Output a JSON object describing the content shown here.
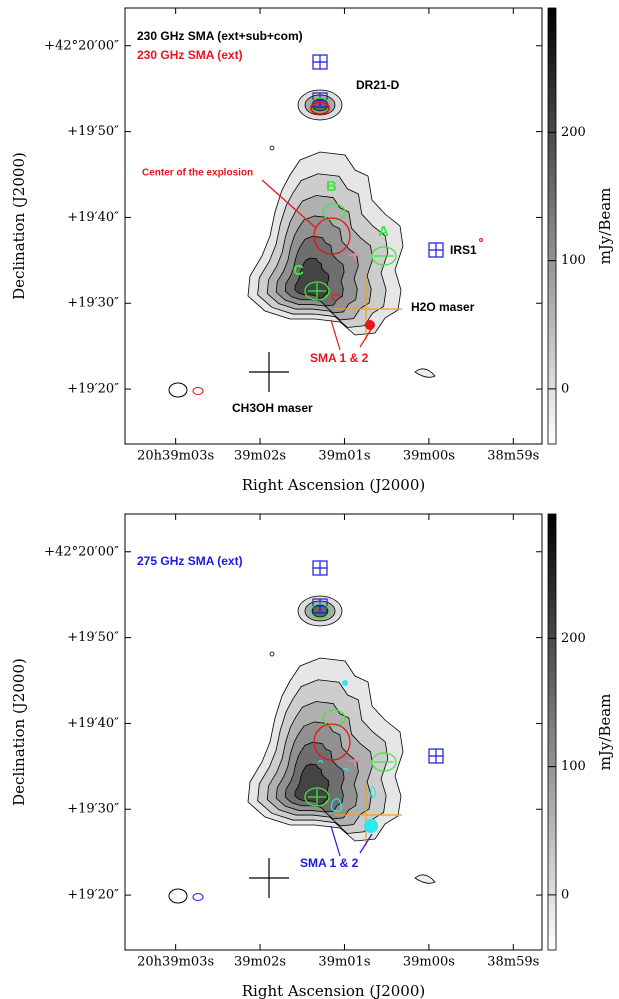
{
  "chart_data": [
    {
      "type": "contour",
      "xlabel": "Right Ascension (J2000)",
      "ylabel": "Declination (J2000)",
      "colorbar_label": "mJy/Beam",
      "xlim": [
        3.6,
        -1.34
      ],
      "xticks": [
        {
          "value": 3,
          "label": "20h39m03s"
        },
        {
          "value": 2,
          "label": "39m02s"
        },
        {
          "value": 1,
          "label": "39m01s"
        },
        {
          "value": 0,
          "label": "39m00s"
        },
        {
          "value": -1,
          "label": "38m59s"
        }
      ],
      "ylim": [
        13.6,
        64.4
      ],
      "yticks": [
        {
          "value": 60,
          "label": "+42°20′00″"
        },
        {
          "value": 50,
          "label": "+19′50″"
        },
        {
          "value": 40,
          "label": "+19′40″"
        },
        {
          "value": 30,
          "label": "+19′30″"
        },
        {
          "value": 20,
          "label": "+19′20″"
        }
      ],
      "clim": [
        -43,
        297
      ],
      "cticks": [
        0,
        100,
        200
      ],
      "annotations": [
        "230 GHz SMA (ext+sub+com)",
        "230 GHz SMA (ext)",
        "DR21-D",
        "Center of the explosion",
        "B",
        "A",
        "C",
        "IRS1",
        "H2O maser",
        "SMA 1 & 2",
        "CH3OH maser"
      ]
    },
    {
      "type": "contour",
      "xlabel": "Right Ascension (J2000)",
      "ylabel": "Declination (J2000)",
      "colorbar_label": "mJy/Beam",
      "xlim": [
        3.6,
        -1.34
      ],
      "xticks": [
        {
          "value": 3,
          "label": "20h39m03s"
        },
        {
          "value": 2,
          "label": "39m02s"
        },
        {
          "value": 1,
          "label": "39m01s"
        },
        {
          "value": 0,
          "label": "39m00s"
        },
        {
          "value": -1,
          "label": "38m59s"
        }
      ],
      "ylim": [
        13.6,
        64.4
      ],
      "yticks": [
        {
          "value": 60,
          "label": "+42°20′00″"
        },
        {
          "value": 50,
          "label": "+19′50″"
        },
        {
          "value": 40,
          "label": "+19′40″"
        },
        {
          "value": 30,
          "label": "+19′30″"
        },
        {
          "value": 20,
          "label": "+19′20″"
        }
      ],
      "clim": [
        -43,
        297
      ],
      "cticks": [
        0,
        100,
        200
      ],
      "annotations": [
        "275 GHz SMA (ext)",
        "SMA 1 & 2"
      ]
    }
  ]
}
